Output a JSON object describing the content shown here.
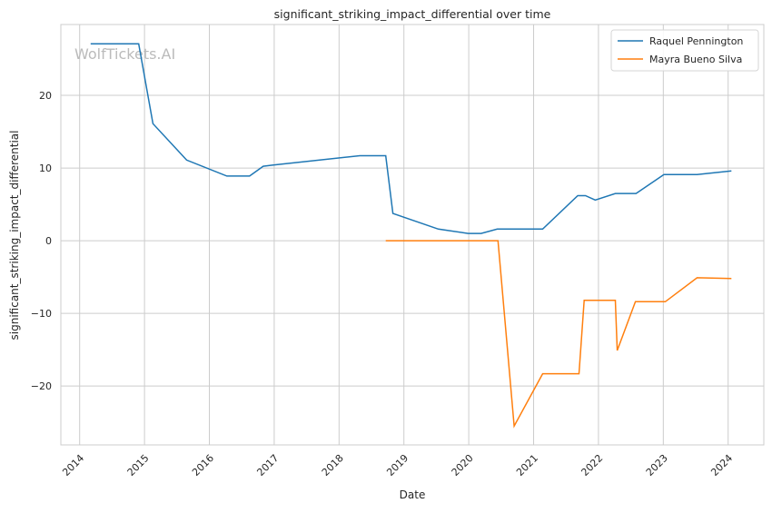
{
  "chart_data": {
    "type": "line",
    "title": "significant_striking_impact_differential over time",
    "xlabel": "Date",
    "ylabel": "significant_striking_impact_differential",
    "xlim": [
      2013.71,
      2024.55
    ],
    "ylim": [
      -28.1,
      29.75
    ],
    "xticks": [
      2014,
      2015,
      2016,
      2017,
      2018,
      2019,
      2020,
      2021,
      2022,
      2023,
      2024
    ],
    "xtick_labels": [
      "2014",
      "2015",
      "2016",
      "2017",
      "2018",
      "2019",
      "2020",
      "2021",
      "2022",
      "2023",
      "2024"
    ],
    "yticks": [
      -20,
      -10,
      0,
      10,
      20
    ],
    "ytick_labels": [
      "−20",
      "−10",
      "0",
      "10",
      "20"
    ],
    "grid": true,
    "legend_position": "top-right",
    "watermark": "WolfTickets.AI",
    "series": [
      {
        "name": "Raquel Pennington",
        "color": "#1f77b4",
        "x": [
          2014.17,
          2014.91,
          2015.13,
          2015.65,
          2016.27,
          2016.62,
          2016.83,
          2016.97,
          2018.32,
          2018.72,
          2018.83,
          2019.53,
          2019.99,
          2020.19,
          2020.44,
          2021.14,
          2021.68,
          2021.8,
          2021.95,
          2022.26,
          2022.58,
          2023.01,
          2023.52,
          2024.05
        ],
        "y": [
          27.1,
          27.1,
          16.1,
          11.1,
          8.9,
          8.9,
          10.25,
          10.4,
          11.7,
          11.7,
          3.75,
          1.6,
          1.0,
          1.0,
          1.6,
          1.6,
          6.2,
          6.2,
          5.6,
          6.5,
          6.5,
          9.1,
          9.1,
          9.6
        ]
      },
      {
        "name": "Mayra Bueno Silva",
        "color": "#ff7f0e",
        "x": [
          2018.72,
          2020.45,
          2020.7,
          2021.14,
          2021.7,
          2021.78,
          2022.26,
          2022.29,
          2022.57,
          2023.03,
          2023.52,
          2024.05
        ],
        "y": [
          0,
          0,
          -25.5,
          -18.3,
          -18.3,
          -8.2,
          -8.2,
          -15.1,
          -8.4,
          -8.4,
          -5.1,
          -5.2
        ]
      }
    ]
  }
}
